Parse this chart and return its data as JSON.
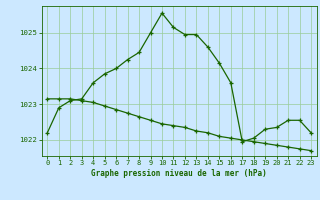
{
  "title": "Graphe pression niveau de la mer (hPa)",
  "bg_color": "#cce8ff",
  "line_color": "#1a6600",
  "grid_color": "#99cc99",
  "x_ticks": [
    0,
    1,
    2,
    3,
    4,
    5,
    6,
    7,
    8,
    9,
    10,
    11,
    12,
    13,
    14,
    15,
    16,
    17,
    18,
    19,
    20,
    21,
    22,
    23
  ],
  "y_ticks": [
    1022,
    1023,
    1024,
    1025
  ],
  "ylim": [
    1021.55,
    1025.75
  ],
  "xlim": [
    -0.5,
    23.5
  ],
  "series1": [
    1022.2,
    1022.9,
    1023.1,
    1023.15,
    1023.6,
    1023.85,
    1024.0,
    1024.25,
    1024.45,
    1025.0,
    1025.55,
    1025.15,
    1024.95,
    1024.95,
    1024.6,
    1024.15,
    1023.6,
    1021.95,
    1022.05,
    1022.3,
    1022.35,
    1022.55,
    1022.55,
    1022.2
  ],
  "series2": [
    1023.15,
    1023.15,
    1023.15,
    1023.1,
    1023.05,
    1022.95,
    1022.85,
    1022.75,
    1022.65,
    1022.55,
    1022.45,
    1022.4,
    1022.35,
    1022.25,
    1022.2,
    1022.1,
    1022.05,
    1022.0,
    1021.95,
    1021.9,
    1021.85,
    1021.8,
    1021.75,
    1021.7
  ],
  "marker": "+",
  "markersize": 3.5,
  "linewidth": 0.9,
  "tick_fontsize": 5.0,
  "xlabel_fontsize": 5.5,
  "spine_linewidth": 0.6
}
